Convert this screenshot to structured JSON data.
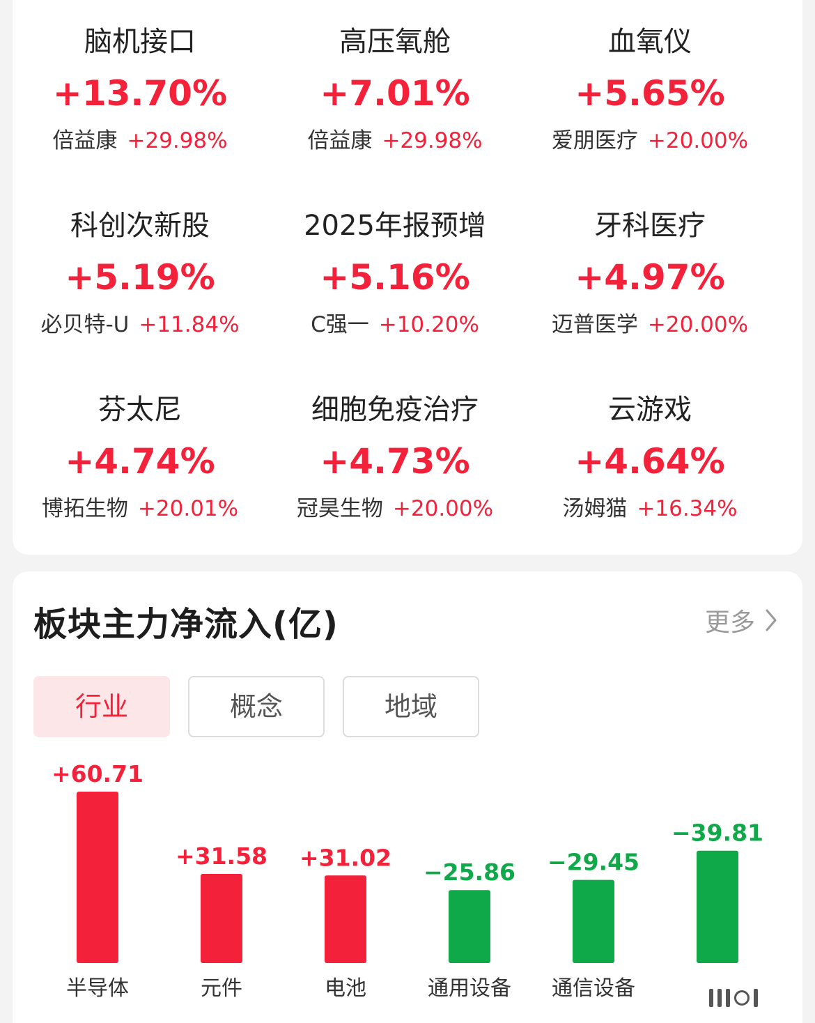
{
  "sectors": [
    {
      "name": "脑机接口",
      "pct": "+13.70%",
      "stock": "倍益康",
      "stock_pct": "+29.98%"
    },
    {
      "name": "高压氧舱",
      "pct": "+7.01%",
      "stock": "倍益康",
      "stock_pct": "+29.98%"
    },
    {
      "name": "血氧仪",
      "pct": "+5.65%",
      "stock": "爱朋医疗",
      "stock_pct": "+20.00%"
    },
    {
      "name": "科创次新股",
      "pct": "+5.19%",
      "stock": "必贝特-U",
      "stock_pct": "+11.84%"
    },
    {
      "name": "2025年报预增",
      "pct": "+5.16%",
      "stock": "C强一",
      "stock_pct": "+10.20%"
    },
    {
      "name": "牙科医疗",
      "pct": "+4.97%",
      "stock": "迈普医学",
      "stock_pct": "+20.00%"
    },
    {
      "name": "芬太尼",
      "pct": "+4.74%",
      "stock": "博拓生物",
      "stock_pct": "+20.01%"
    },
    {
      "name": "细胞免疫治疗",
      "pct": "+4.73%",
      "stock": "冠昊生物",
      "stock_pct": "+20.00%"
    },
    {
      "name": "云游戏",
      "pct": "+4.64%",
      "stock": "汤姆猫",
      "stock_pct": "+16.34%"
    }
  ],
  "flow_section": {
    "title": "板块主力净流入(亿)",
    "more_label": "更多",
    "tabs": [
      {
        "label": "行业",
        "active": true
      },
      {
        "label": "概念",
        "active": false
      },
      {
        "label": "地域",
        "active": false
      }
    ]
  },
  "colors": {
    "up": "#f3223a",
    "down": "#0fa94a",
    "tab_active_bg": "#fde6e8"
  },
  "chart_data": {
    "type": "bar",
    "categories": [
      "半导体",
      "元件",
      "电池",
      "通用设备",
      "通信设备",
      ""
    ],
    "values": [
      60.71,
      31.58,
      31.02,
      -25.86,
      -29.45,
      -39.81
    ],
    "value_labels": [
      "+60.71",
      "+31.58",
      "+31.02",
      "−25.86",
      "−29.45",
      "−39.81"
    ],
    "magnitude_scale": "absolute value; red for inflow, green for outflow",
    "title": "板块主力净流入(亿)"
  }
}
